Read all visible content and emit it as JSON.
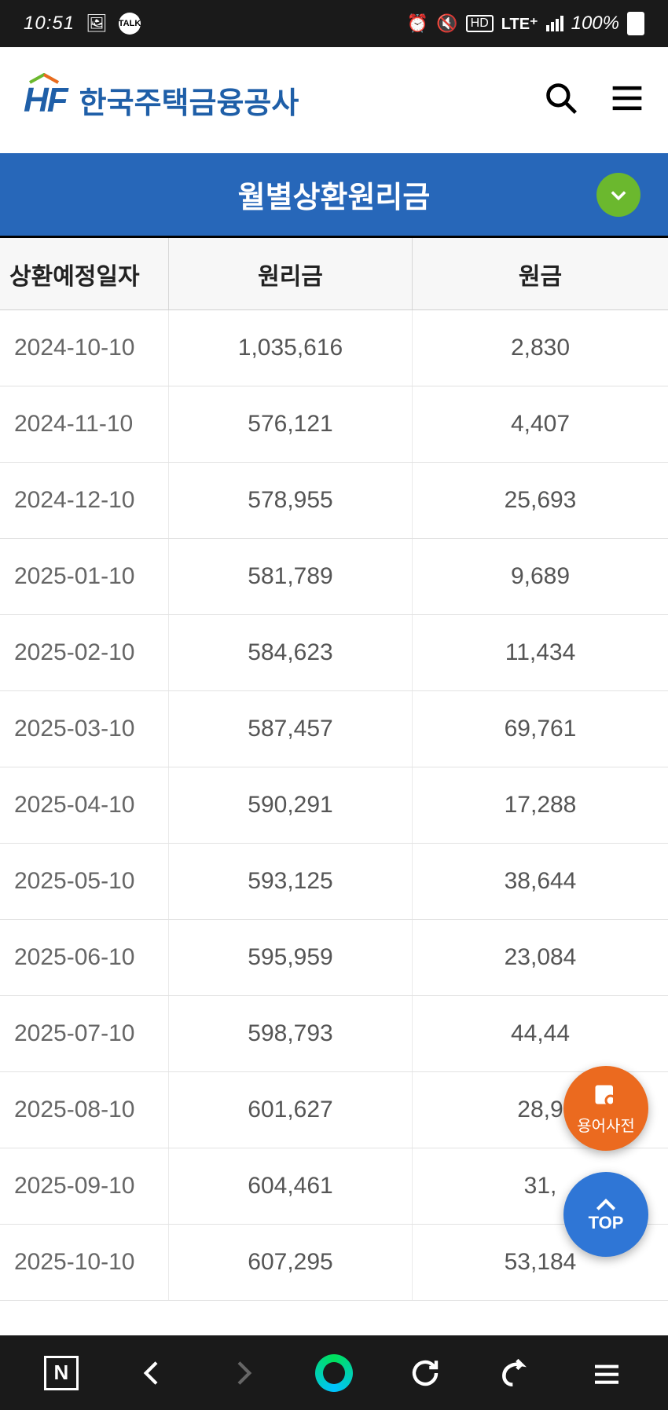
{
  "status": {
    "time": "10:51",
    "battery": "100%",
    "lte": "LTE⁺"
  },
  "header": {
    "logo_prefix": "HF",
    "logo_text": "한국주택금융공사"
  },
  "band": {
    "title": "월별상환원리금"
  },
  "table": {
    "columns": [
      "상환예정일자",
      "원리금",
      "원금"
    ],
    "rows": [
      [
        "2024-10-10",
        "1,035,616",
        "2,830"
      ],
      [
        "2024-11-10",
        "576,121",
        "4,407"
      ],
      [
        "2024-12-10",
        "578,955",
        "25,693"
      ],
      [
        "2025-01-10",
        "581,789",
        "9,689"
      ],
      [
        "2025-02-10",
        "584,623",
        "11,434"
      ],
      [
        "2025-03-10",
        "587,457",
        "69,761"
      ],
      [
        "2025-04-10",
        "590,291",
        "17,288"
      ],
      [
        "2025-05-10",
        "593,125",
        "38,644"
      ],
      [
        "2025-06-10",
        "595,959",
        "23,084"
      ],
      [
        "2025-07-10",
        "598,793",
        "44,44"
      ],
      [
        "2025-08-10",
        "601,627",
        "28,9"
      ],
      [
        "2025-09-10",
        "604,461",
        "31,"
      ],
      [
        "2025-10-10",
        "607,295",
        "53,184"
      ]
    ]
  },
  "fab": {
    "dict_label": "용어사전",
    "top_label": "TOP"
  },
  "colors": {
    "band": "#2767b9",
    "expand": "#6bb82e",
    "fab_dict": "#eb6a1f",
    "fab_top": "#2f76d6",
    "logo": "#1f5fa8"
  }
}
